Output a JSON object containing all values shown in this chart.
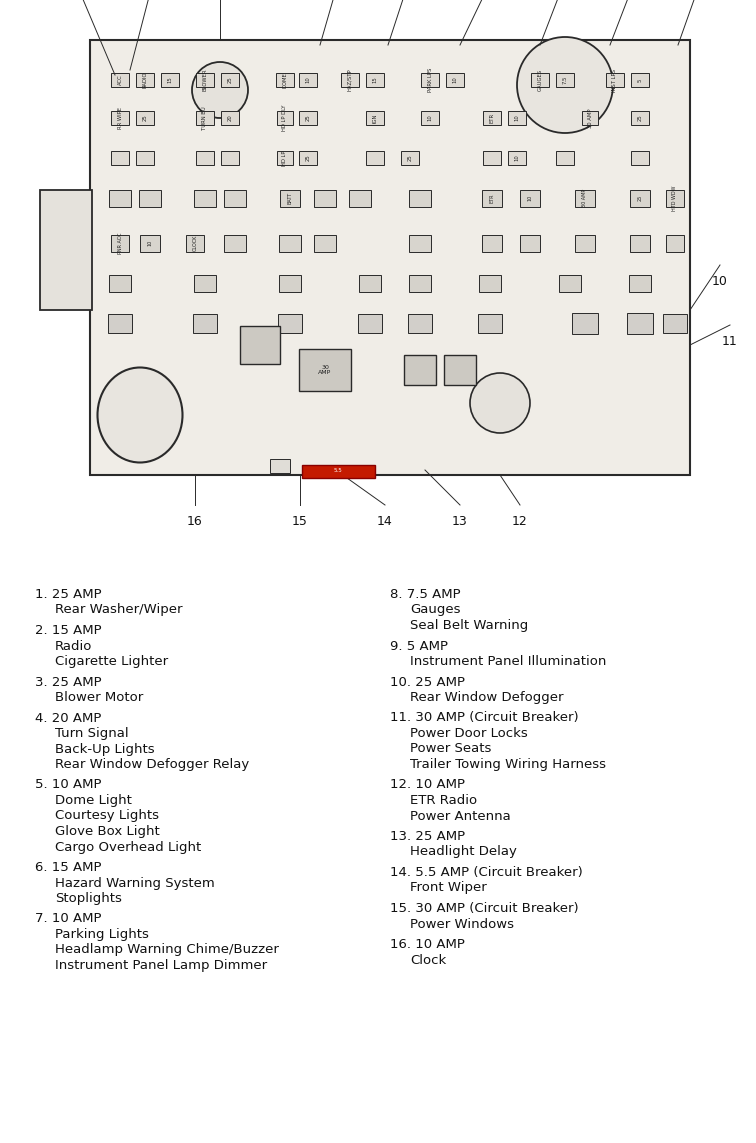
{
  "bg_color": "#ffffff",
  "lc": "#2a2a2a",
  "fc_light": "#e8e5df",
  "fc_mid": "#d8d5ce",
  "red_fuse": "#c41a00",
  "diagram_region": [
    0,
    530,
    756,
    530
  ],
  "legend_region": [
    0,
    560,
    756,
    580
  ],
  "legend_left": [
    {
      "num": "1.",
      "amp": "25 AMP",
      "desc": [
        "Rear Washer/Wiper"
      ]
    },
    {
      "num": "2.",
      "amp": "15 AMP",
      "desc": [
        "Radio",
        "Cigarette Lighter"
      ]
    },
    {
      "num": "3.",
      "amp": "25 AMP",
      "desc": [
        "Blower Motor"
      ]
    },
    {
      "num": "4.",
      "amp": "20 AMP",
      "desc": [
        "Turn Signal",
        "Back-Up Lights",
        "Rear Window Defogger Relay"
      ]
    },
    {
      "num": "5.",
      "amp": "10 AMP",
      "desc": [
        "Dome Light",
        "Courtesy Lights",
        "Glove Box Light",
        "Cargo Overhead Light"
      ]
    },
    {
      "num": "6.",
      "amp": "15 AMP",
      "desc": [
        "Hazard Warning System",
        "Stoplights"
      ]
    },
    {
      "num": "7.",
      "amp": "10 AMP",
      "desc": [
        "Parking Lights",
        "Headlamp Warning Chime/Buzzer",
        "Instrument Panel Lamp Dimmer"
      ]
    }
  ],
  "legend_right": [
    {
      "num": "8.",
      "amp": "7.5 AMP",
      "desc": [
        "Gauges",
        "Seal Belt Warning"
      ]
    },
    {
      "num": "9.",
      "amp": "5 AMP",
      "desc": [
        "Instrument Panel Illumination"
      ]
    },
    {
      "num": "10.",
      "amp": "25 AMP",
      "desc": [
        "Rear Window Defogger"
      ]
    },
    {
      "num": "11.",
      "amp": "30 AMP (Circuit Breaker)",
      "desc": [
        "Power Door Locks",
        "Power Seats",
        "Trailer Towing Wiring Harness"
      ]
    },
    {
      "num": "12.",
      "amp": "10 AMP",
      "desc": [
        "ETR Radio",
        "Power Antenna"
      ]
    },
    {
      "num": "13.",
      "amp": "25 AMP",
      "desc": [
        "Headlight Delay"
      ]
    },
    {
      "num": "14.",
      "amp": "5.5 AMP (Circuit Breaker)",
      "desc": [
        "Front Wiper"
      ]
    },
    {
      "num": "15.",
      "amp": "30 AMP (Circuit Breaker)",
      "desc": [
        "Power Windows"
      ]
    },
    {
      "num": "16.",
      "amp": "10 AMP",
      "desc": [
        "Clock"
      ]
    }
  ]
}
